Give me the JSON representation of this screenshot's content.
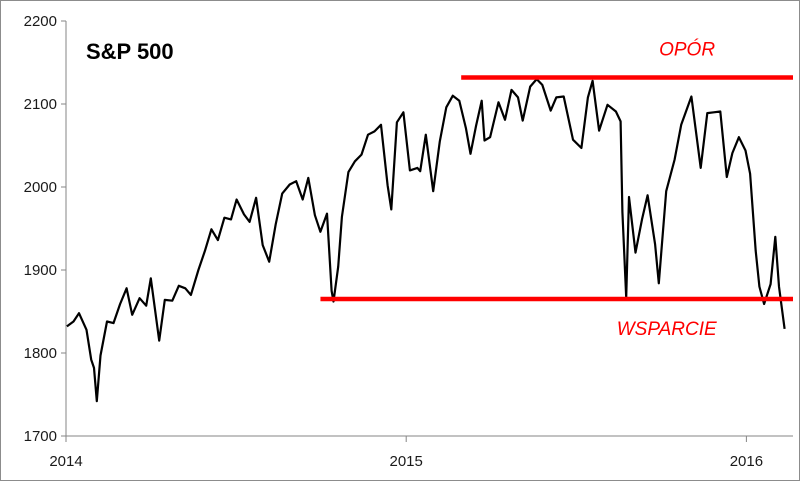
{
  "chart_data": {
    "type": "line",
    "title": "S&P 500",
    "xlabel": "",
    "ylabel": "",
    "ylim": [
      1700,
      2200
    ],
    "xlim": [
      "2014-01-01",
      "2016-02-20"
    ],
    "y_ticks": [
      1700,
      1800,
      1900,
      2000,
      2100,
      2200
    ],
    "x_ticks": [
      {
        "label": "2014",
        "date": "2014-01-01"
      },
      {
        "label": "2015",
        "date": "2015-01-01"
      },
      {
        "label": "2016",
        "date": "2016-01-01"
      }
    ],
    "grid": false,
    "line_color": "#000000",
    "series": [
      {
        "name": "",
        "points": [
          [
            "2014-01-02",
            1832
          ],
          [
            "2014-01-09",
            1838
          ],
          [
            "2014-01-15",
            1848
          ],
          [
            "2014-01-23",
            1828
          ],
          [
            "2014-01-28",
            1792
          ],
          [
            "2014-01-31",
            1782
          ],
          [
            "2014-02-03",
            1742
          ],
          [
            "2014-02-07",
            1797
          ],
          [
            "2014-02-14",
            1838
          ],
          [
            "2014-02-21",
            1836
          ],
          [
            "2014-02-28",
            1859
          ],
          [
            "2014-03-07",
            1878
          ],
          [
            "2014-03-13",
            1846
          ],
          [
            "2014-03-21",
            1866
          ],
          [
            "2014-03-28",
            1857
          ],
          [
            "2014-04-02",
            1890
          ],
          [
            "2014-04-11",
            1815
          ],
          [
            "2014-04-17",
            1864
          ],
          [
            "2014-04-25",
            1863
          ],
          [
            "2014-05-02",
            1881
          ],
          [
            "2014-05-09",
            1878
          ],
          [
            "2014-05-15",
            1870
          ],
          [
            "2014-05-23",
            1900
          ],
          [
            "2014-05-30",
            1923
          ],
          [
            "2014-06-06",
            1949
          ],
          [
            "2014-06-13",
            1936
          ],
          [
            "2014-06-20",
            1963
          ],
          [
            "2014-06-27",
            1961
          ],
          [
            "2014-07-03",
            1985
          ],
          [
            "2014-07-11",
            1967
          ],
          [
            "2014-07-17",
            1958
          ],
          [
            "2014-07-24",
            1987
          ],
          [
            "2014-07-31",
            1930
          ],
          [
            "2014-08-07",
            1910
          ],
          [
            "2014-08-14",
            1955
          ],
          [
            "2014-08-21",
            1992
          ],
          [
            "2014-08-29",
            2003
          ],
          [
            "2014-09-05",
            2007
          ],
          [
            "2014-09-12",
            1985
          ],
          [
            "2014-09-18",
            2011
          ],
          [
            "2014-09-25",
            1966
          ],
          [
            "2014-10-01",
            1946
          ],
          [
            "2014-10-08",
            1968
          ],
          [
            "2014-10-13",
            1875
          ],
          [
            "2014-10-15",
            1862
          ],
          [
            "2014-10-20",
            1904
          ],
          [
            "2014-10-24",
            1964
          ],
          [
            "2014-10-31",
            2018
          ],
          [
            "2014-11-07",
            2031
          ],
          [
            "2014-11-14",
            2039
          ],
          [
            "2014-11-21",
            2063
          ],
          [
            "2014-11-28",
            2067
          ],
          [
            "2014-12-05",
            2075
          ],
          [
            "2014-12-12",
            2002
          ],
          [
            "2014-12-16",
            1973
          ],
          [
            "2014-12-22",
            2078
          ],
          [
            "2014-12-29",
            2090
          ],
          [
            "2015-01-05",
            2020
          ],
          [
            "2015-01-13",
            2023
          ],
          [
            "2015-01-16",
            2019
          ],
          [
            "2015-01-22",
            2063
          ],
          [
            "2015-01-30",
            1995
          ],
          [
            "2015-02-06",
            2055
          ],
          [
            "2015-02-13",
            2096
          ],
          [
            "2015-02-20",
            2110
          ],
          [
            "2015-02-27",
            2104
          ],
          [
            "2015-03-06",
            2071
          ],
          [
            "2015-03-11",
            2040
          ],
          [
            "2015-03-17",
            2074
          ],
          [
            "2015-03-23",
            2104
          ],
          [
            "2015-03-26",
            2056
          ],
          [
            "2015-04-01",
            2060
          ],
          [
            "2015-04-10",
            2102
          ],
          [
            "2015-04-17",
            2081
          ],
          [
            "2015-04-24",
            2117
          ],
          [
            "2015-05-01",
            2108
          ],
          [
            "2015-05-06",
            2080
          ],
          [
            "2015-05-14",
            2121
          ],
          [
            "2015-05-21",
            2130
          ],
          [
            "2015-05-27",
            2123
          ],
          [
            "2015-06-05",
            2092
          ],
          [
            "2015-06-11",
            2108
          ],
          [
            "2015-06-19",
            2109
          ],
          [
            "2015-06-29",
            2057
          ],
          [
            "2015-07-08",
            2047
          ],
          [
            "2015-07-15",
            2108
          ],
          [
            "2015-07-20",
            2128
          ],
          [
            "2015-07-27",
            2068
          ],
          [
            "2015-08-05",
            2099
          ],
          [
            "2015-08-14",
            2091
          ],
          [
            "2015-08-19",
            2079
          ],
          [
            "2015-08-21",
            1970
          ],
          [
            "2015-08-25",
            1867
          ],
          [
            "2015-08-28",
            1988
          ],
          [
            "2015-09-04",
            1921
          ],
          [
            "2015-09-11",
            1961
          ],
          [
            "2015-09-17",
            1990
          ],
          [
            "2015-09-25",
            1931
          ],
          [
            "2015-09-29",
            1884
          ],
          [
            "2015-10-07",
            1995
          ],
          [
            "2015-10-16",
            2033
          ],
          [
            "2015-10-23",
            2075
          ],
          [
            "2015-11-03",
            2109
          ],
          [
            "2015-11-13",
            2023
          ],
          [
            "2015-11-20",
            2089
          ],
          [
            "2015-11-27",
            2090
          ],
          [
            "2015-12-04",
            2091
          ],
          [
            "2015-12-11",
            2012
          ],
          [
            "2015-12-17",
            2041
          ],
          [
            "2015-12-24",
            2060
          ],
          [
            "2015-12-31",
            2044
          ],
          [
            "2016-01-05",
            2016
          ],
          [
            "2016-01-11",
            1923
          ],
          [
            "2016-01-15",
            1880
          ],
          [
            "2016-01-20",
            1859
          ],
          [
            "2016-01-27",
            1883
          ],
          [
            "2016-02-01",
            1940
          ],
          [
            "2016-02-05",
            1880
          ],
          [
            "2016-02-11",
            1829
          ]
        ]
      }
    ],
    "annotations": [
      {
        "label": "OPÓR",
        "kind": "resistance",
        "level": 2132,
        "from": "2015-03-01",
        "to": "2016-02-20",
        "color": "#ff0000"
      },
      {
        "label": "WSPARCIE",
        "kind": "support",
        "level": 1865,
        "from": "2014-10-01",
        "to": "2016-02-20",
        "color": "#ff0000"
      }
    ]
  }
}
